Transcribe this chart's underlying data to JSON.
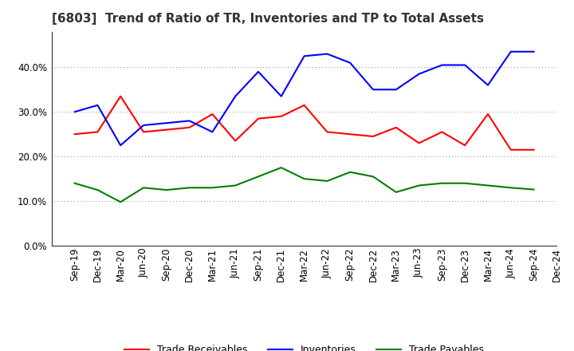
{
  "title": "[6803]  Trend of Ratio of TR, Inventories and TP to Total Assets",
  "labels": [
    "Sep-19",
    "Dec-19",
    "Mar-20",
    "Jun-20",
    "Sep-20",
    "Dec-20",
    "Mar-21",
    "Jun-21",
    "Sep-21",
    "Dec-21",
    "Mar-22",
    "Jun-22",
    "Sep-22",
    "Dec-22",
    "Mar-23",
    "Jun-23",
    "Sep-23",
    "Dec-23",
    "Mar-24",
    "Jun-24",
    "Sep-24",
    "Dec-24"
  ],
  "trade_receivables": [
    0.25,
    0.255,
    0.335,
    0.255,
    0.26,
    0.265,
    0.295,
    0.235,
    0.285,
    0.29,
    0.315,
    0.255,
    0.25,
    0.245,
    0.265,
    0.23,
    0.255,
    0.225,
    0.295,
    0.215,
    0.215,
    null
  ],
  "inventories": [
    0.3,
    0.315,
    0.225,
    0.27,
    0.275,
    0.28,
    0.255,
    0.335,
    0.39,
    0.335,
    0.425,
    0.43,
    0.41,
    0.35,
    0.35,
    0.385,
    0.405,
    0.405,
    0.36,
    0.435,
    0.435,
    null
  ],
  "trade_payables": [
    0.14,
    0.125,
    0.098,
    0.13,
    0.125,
    0.13,
    0.13,
    0.135,
    0.155,
    0.175,
    0.15,
    0.145,
    0.165,
    0.155,
    0.12,
    0.135,
    0.14,
    0.14,
    0.135,
    0.13,
    0.126,
    null
  ],
  "tr_color": "#ff0000",
  "inv_color": "#0000ff",
  "tp_color": "#008000",
  "ylim": [
    0.0,
    0.48
  ],
  "yticks": [
    0.0,
    0.1,
    0.2,
    0.3,
    0.4
  ],
  "background_color": "#ffffff",
  "grid_color": "#888888",
  "title_fontsize": 11,
  "tick_fontsize": 8.5,
  "legend_fontsize": 9
}
